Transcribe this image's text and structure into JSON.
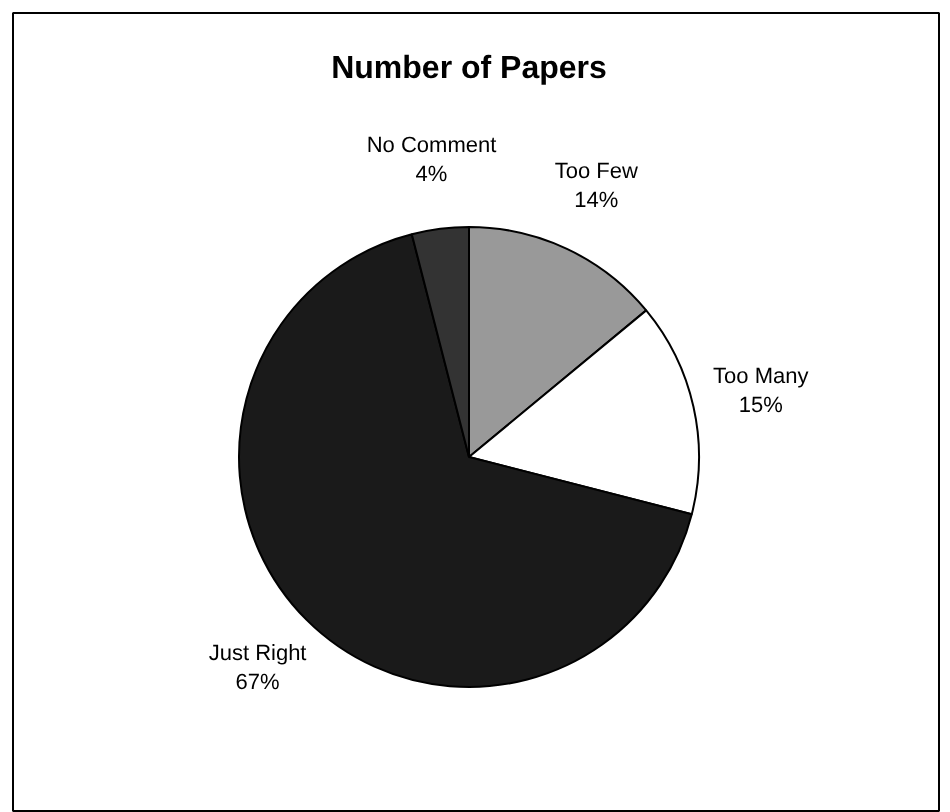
{
  "chart_data": {
    "type": "pie",
    "title": "Number of Papers",
    "categories": [
      "Too Few",
      "Too Many",
      "Just Right",
      "No Comment"
    ],
    "values": [
      14,
      15,
      67,
      4
    ],
    "value_labels": [
      "14%",
      "15%",
      "67%",
      "4%"
    ],
    "colors": [
      "#999999",
      "#ffffff",
      "#1a1a1a",
      "#333333"
    ]
  }
}
